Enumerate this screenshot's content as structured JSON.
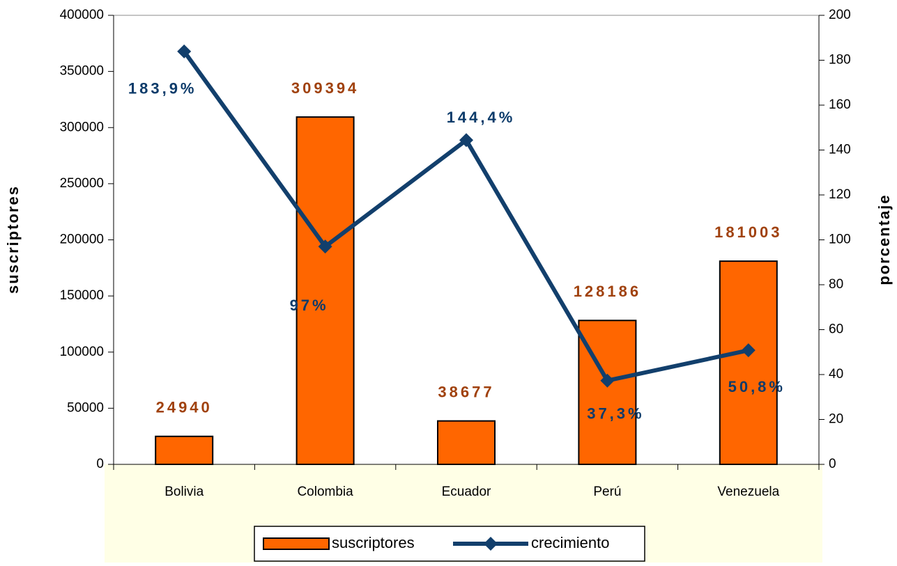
{
  "chart_data": {
    "type": "bar-line",
    "categories": [
      "Bolivia",
      "Colombia",
      "Ecuador",
      "Perú",
      "Venezuela"
    ],
    "series": [
      {
        "name": "suscriptores",
        "type": "bar",
        "color": "#ff6600",
        "values": [
          24940,
          309394,
          38677,
          128186,
          181003
        ]
      },
      {
        "name": "crecimiento",
        "type": "line",
        "axis": "y2",
        "color": "#123f6c",
        "values": [
          183.9,
          97,
          144.4,
          37.3,
          50.8
        ],
        "value_labels": [
          "183,9%",
          "97%",
          "144,4%",
          "37,3%",
          "50,8%"
        ]
      }
    ],
    "ylabel": "suscriptores",
    "y2label": "porcentaje",
    "ylim": [
      0,
      400000
    ],
    "yticks": [
      0,
      50000,
      100000,
      150000,
      200000,
      250000,
      300000,
      350000,
      400000
    ],
    "y2lim": [
      0,
      200
    ],
    "y2ticks": [
      0,
      20,
      40,
      60,
      80,
      100,
      120,
      140,
      160,
      180,
      200
    ],
    "legend": "bottom"
  }
}
